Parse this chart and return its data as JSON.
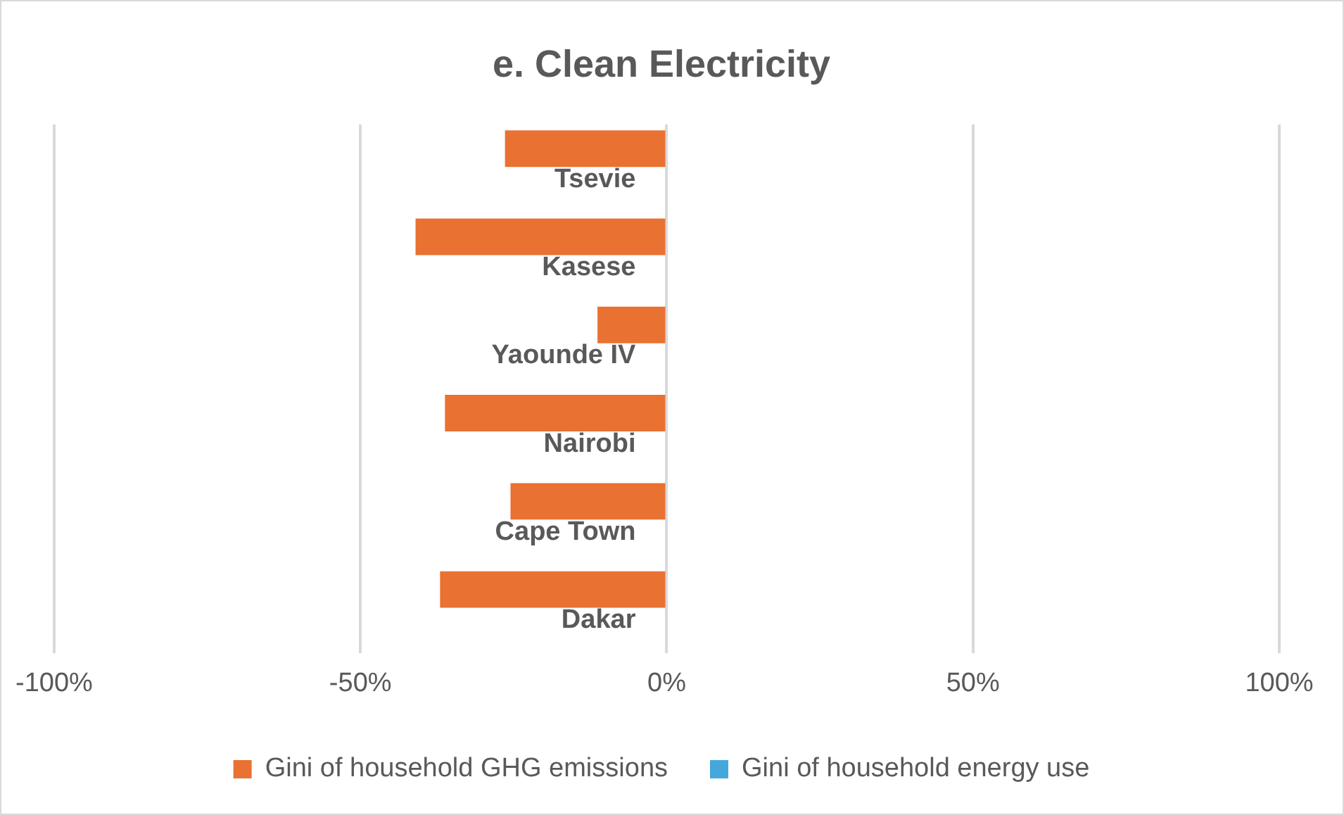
{
  "chart_data": {
    "type": "bar",
    "orientation": "horizontal",
    "title": "e. Clean Electricity",
    "categories": [
      "Tsevie",
      "Kasese",
      "Yaounde IV",
      "Nairobi",
      "Cape Town",
      "Dakar"
    ],
    "series": [
      {
        "name": "Gini of household GHG emissions",
        "color": "#e97132",
        "values": [
          -26.4,
          -41,
          -11.3,
          -36.2,
          -25.5,
          -37
        ]
      },
      {
        "name": "Gini of household energy use",
        "color": "#44a8dc",
        "values": [
          0,
          0,
          0,
          0,
          0,
          0
        ]
      }
    ],
    "xlim": [
      -100,
      100
    ],
    "xticks": [
      {
        "value": -100,
        "label": "-100%"
      },
      {
        "value": -50,
        "label": "-50%"
      },
      {
        "value": 0,
        "label": "0%"
      },
      {
        "value": 50,
        "label": "50%"
      },
      {
        "value": 100,
        "label": "100%"
      }
    ],
    "grid": "x",
    "legend": "bottom"
  }
}
